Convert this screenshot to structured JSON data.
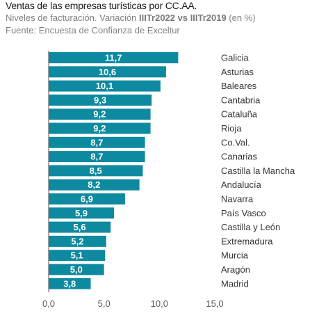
{
  "header": {
    "title": "Ventas de las empresas turísticas por CC.AA.",
    "subtitle_prefix": "Niveles de facturación. Variación ",
    "subtitle_bold": "IIITr2022 vs IIITr2019",
    "subtitle_suffix": " (en %)",
    "source": "Fuente: Encuesta de Confianza de Exceltur"
  },
  "colors": {
    "bar": "#0e8aa0",
    "bar_label": "#ffffff",
    "category_label": "#333333",
    "tick_label": "#555555",
    "axis": "#555555"
  },
  "chart_data": {
    "type": "bar",
    "orientation": "horizontal",
    "categories": [
      "Galicia",
      "Asturias",
      "Baleares",
      "Cantabria",
      "Cataluña",
      "Rioja",
      "Co.Val.",
      "Canarias",
      "Castilla la Mancha",
      "Andalucía",
      "Navarra",
      "País Vasco",
      "Castilla y León",
      "Extremadura",
      "Murcia",
      "Aragón",
      "Madrid"
    ],
    "values": [
      11.7,
      10.6,
      10.1,
      9.3,
      9.2,
      9.2,
      8.7,
      8.7,
      8.5,
      8.2,
      6.9,
      5.9,
      5.6,
      5.2,
      5.1,
      5.0,
      3.8
    ],
    "value_labels": [
      "11,7",
      "10,6",
      "10,1",
      "9,3",
      "9,2",
      "9,2",
      "8,7",
      "8,7",
      "8,5",
      "8,2",
      "6,9",
      "5,9",
      "5,6",
      "5,2",
      "5,1",
      "5,0",
      "3,8"
    ],
    "xlim": [
      0,
      15
    ],
    "xticks": [
      0,
      5,
      10,
      15
    ],
    "xtick_labels": [
      "0,0",
      "5,0",
      "10,0",
      "15,0"
    ],
    "category_label_position": "right",
    "data_labels": "inside-end",
    "grid": false,
    "legend": false
  }
}
